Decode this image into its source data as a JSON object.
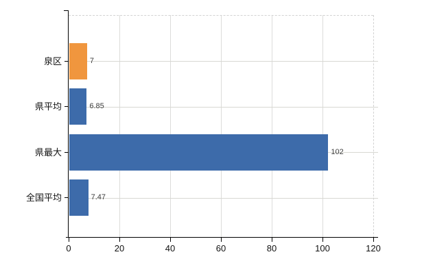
{
  "chart_data": {
    "type": "bar",
    "orientation": "horizontal",
    "title": "",
    "categories": [
      "泉区",
      "県平均",
      "県最大",
      "全国平均"
    ],
    "values": [
      7,
      6.85,
      102,
      7.47
    ],
    "value_labels": [
      "7",
      "6.85",
      "102",
      "7.47"
    ],
    "bar_colors": [
      "#f0963e",
      "#3d6baa",
      "#3d6baa",
      "#3d6baa"
    ],
    "xlim": [
      0,
      120
    ],
    "x_ticks": [
      0,
      20,
      40,
      60,
      80,
      100,
      120
    ],
    "x_tick_labels": [
      "0",
      "20",
      "40",
      "60",
      "80",
      "100",
      "120"
    ],
    "legend": "none",
    "grid": {
      "vertical_gridlines": true,
      "horizontal_row_lines": true,
      "plot_border_style": "dashed-top-right"
    },
    "colors": {
      "background": "#ffffff",
      "bar_blue": "#3d6baa",
      "bar_orange": "#f0963e",
      "gridline": "#dcdcda",
      "row_line": "#d8d8d2",
      "dashed_border": "#d2d2d2",
      "axis": "#000000",
      "tick_label": "#111111",
      "value_label": "#3d3d3d"
    }
  }
}
